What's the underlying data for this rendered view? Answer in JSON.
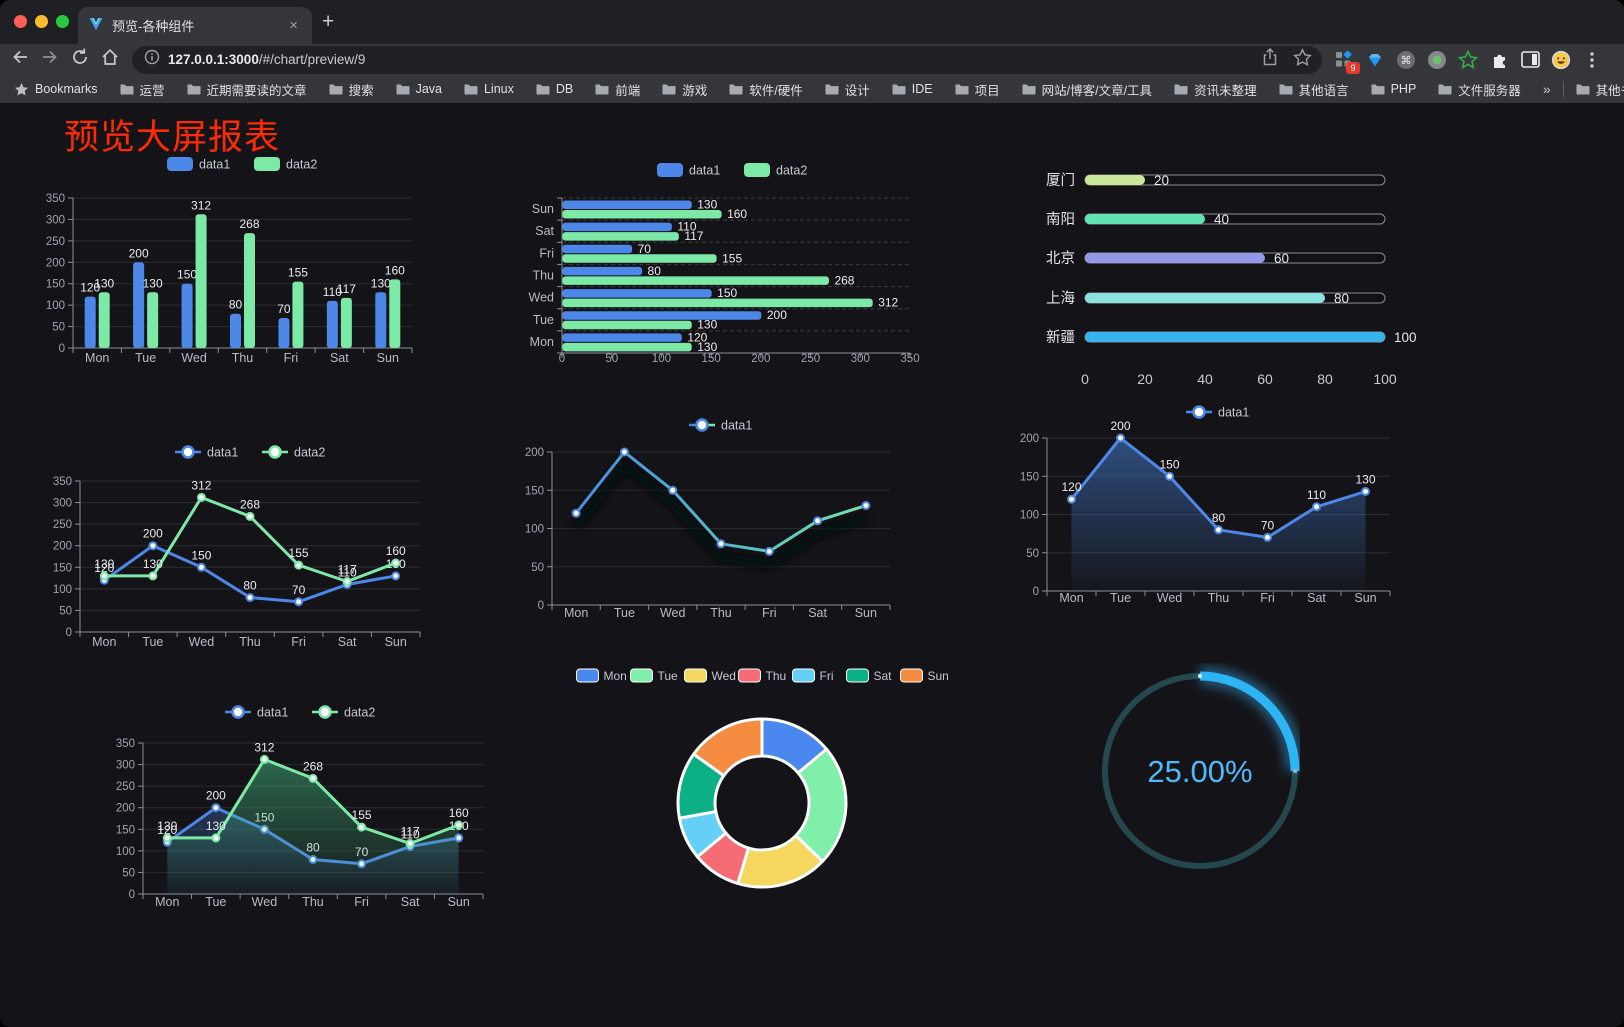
{
  "browser": {
    "tab": {
      "title": "预览-各种组件",
      "close_icon": "×",
      "new_tab_icon": "+"
    },
    "url": {
      "host": "127.0.0.1:3000",
      "path": "/#/chart/preview/9"
    },
    "extension_badge": "9",
    "bookmarks_label": "Bookmarks",
    "bookmarks": [
      "运营",
      "近期需要读的文章",
      "搜索",
      "Java",
      "Linux",
      "DB",
      "前端",
      "游戏",
      "软件/硬件",
      "设计",
      "IDE",
      "项目",
      "网站/博客/文章/工具",
      "资讯未整理",
      "其他语言",
      "PHP",
      "文件服务器"
    ],
    "bookmarks_overflow": "»",
    "other_bookmarks": "其他书签"
  },
  "page": {
    "title": "预览大屏报表",
    "title_color": "#fd2b01",
    "bg": "#141418"
  },
  "chart_data": [
    {
      "id": "grouped-bar",
      "type": "bar",
      "title": "",
      "categories": [
        "Mon",
        "Tue",
        "Wed",
        "Thu",
        "Fri",
        "Sat",
        "Sun"
      ],
      "series": [
        {
          "name": "data1",
          "color": "#4d87e8",
          "values": [
            120,
            200,
            150,
            80,
            70,
            110,
            130
          ]
        },
        {
          "name": "data2",
          "color": "#7de9a6",
          "values": [
            130,
            130,
            312,
            268,
            155,
            117,
            160
          ]
        }
      ],
      "ylim": [
        0,
        350
      ],
      "ytick": 50,
      "show_labels": true,
      "legend_position": "top"
    },
    {
      "id": "horizontal-bar",
      "type": "bar-horizontal",
      "categories": [
        "Mon",
        "Tue",
        "Wed",
        "Thu",
        "Fri",
        "Sat",
        "Sun"
      ],
      "series": [
        {
          "name": "data1",
          "color": "#4d87e8",
          "values": [
            120,
            200,
            150,
            80,
            70,
            110,
            130
          ]
        },
        {
          "name": "data2",
          "color": "#7de9a6",
          "values": [
            130,
            130,
            312,
            268,
            155,
            117,
            160
          ]
        }
      ],
      "xlim": [
        0,
        350
      ],
      "xtick": 50,
      "show_labels": true,
      "legend_position": "top"
    },
    {
      "id": "progress-list",
      "type": "progress",
      "rows": [
        {
          "label": "厦门",
          "value": 20,
          "color": "#cbe799"
        },
        {
          "label": "南阳",
          "value": 40,
          "color": "#60e2b2"
        },
        {
          "label": "北京",
          "value": 60,
          "color": "#9598e8"
        },
        {
          "label": "上海",
          "value": 80,
          "color": "#8ae3e1"
        },
        {
          "label": "新疆",
          "value": 100,
          "color": "#38b2ea"
        }
      ],
      "xticks": [
        0,
        20,
        40,
        60,
        80,
        100
      ],
      "xlim": [
        0,
        100
      ]
    },
    {
      "id": "line-two-series",
      "type": "line",
      "categories": [
        "Mon",
        "Tue",
        "Wed",
        "Thu",
        "Fri",
        "Sat",
        "Sun"
      ],
      "series": [
        {
          "name": "data1",
          "color": "#4d87e8",
          "values": [
            120,
            200,
            150,
            80,
            70,
            110,
            130
          ]
        },
        {
          "name": "data2",
          "color": "#7de9a6",
          "values": [
            130,
            130,
            312,
            268,
            155,
            117,
            160
          ]
        }
      ],
      "ylim": [
        0,
        350
      ],
      "ytick": 50,
      "show_labels": true,
      "markers": true
    },
    {
      "id": "line-gradient",
      "type": "line",
      "categories": [
        "Mon",
        "Tue",
        "Wed",
        "Thu",
        "Fri",
        "Sat",
        "Sun"
      ],
      "series": [
        {
          "name": "data1",
          "gradient": [
            "#4487e8",
            "#7de9a6"
          ],
          "values": [
            120,
            200,
            150,
            80,
            70,
            110,
            130
          ]
        }
      ],
      "ylim": [
        0,
        200
      ],
      "ytick": 50,
      "show_labels": false,
      "markers": true
    },
    {
      "id": "area-single",
      "type": "area",
      "categories": [
        "Mon",
        "Tue",
        "Wed",
        "Thu",
        "Fri",
        "Sat",
        "Sun"
      ],
      "series": [
        {
          "name": "data1",
          "color": "#4d87e8",
          "values": [
            120,
            200,
            150,
            80,
            70,
            110,
            130
          ]
        }
      ],
      "ylim": [
        0,
        200
      ],
      "ytick": 50,
      "show_labels": true,
      "markers": true
    },
    {
      "id": "area-two",
      "type": "area",
      "categories": [
        "Mon",
        "Tue",
        "Wed",
        "Thu",
        "Fri",
        "Sat",
        "Sun"
      ],
      "series": [
        {
          "name": "data1",
          "color": "#4d87e8",
          "values": [
            120,
            200,
            150,
            80,
            70,
            110,
            130
          ]
        },
        {
          "name": "data2",
          "color": "#7de9a6",
          "values": [
            130,
            130,
            312,
            268,
            155,
            117,
            160
          ]
        }
      ],
      "ylim": [
        0,
        350
      ],
      "ytick": 50,
      "show_labels": true,
      "markers": true
    },
    {
      "id": "donut",
      "type": "pie",
      "slices": [
        {
          "label": "Mon",
          "value": 120,
          "color": "#4a87ef"
        },
        {
          "label": "Tue",
          "value": 200,
          "color": "#80efa9"
        },
        {
          "label": "Wed",
          "value": 150,
          "color": "#f5d65f"
        },
        {
          "label": "Thu",
          "value": 80,
          "color": "#f56c74"
        },
        {
          "label": "Fri",
          "value": 70,
          "color": "#64cff7"
        },
        {
          "label": "Sat",
          "value": 110,
          "color": "#0cb085"
        },
        {
          "label": "Sun",
          "value": 130,
          "color": "#f58c41"
        }
      ],
      "legend_position": "top"
    },
    {
      "id": "gauge",
      "type": "gauge",
      "percent": 25,
      "label": "25.00%",
      "color": "#2db4f4",
      "track_color": "#25484f",
      "text_color": "#4dbbf7"
    }
  ]
}
